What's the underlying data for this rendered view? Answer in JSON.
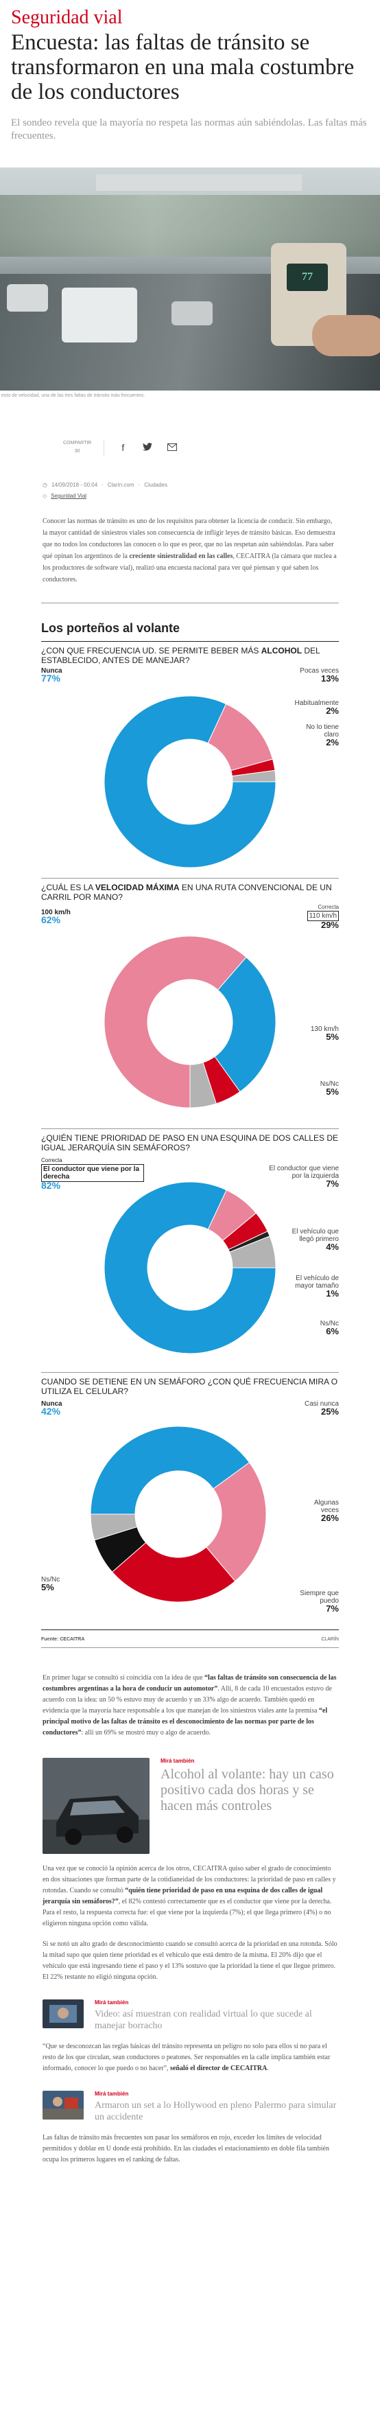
{
  "section": "Seguridad vial",
  "headline": "Encuesta: las faltas de tránsito se transformaron en una mala costumbre de los conductores",
  "dek": "El sondeo revela que la mayoría no respeta las normas aún sabiéndolas. Las faltas más frecuentes.",
  "hero": {
    "speed": "77",
    "caption": "esto de velocidad, una de las tres faltas de tránsito más frecuentes."
  },
  "share": {
    "count_label": "COMPARTIR",
    "count": "30"
  },
  "meta": {
    "date": "14/09/2018 - 00:04",
    "site": "Clarín.com",
    "section": "Ciudades",
    "tag": "Seguridad Vial"
  },
  "intro": {
    "t1": "Conocer las normas de tránsito es uno de los requisitos para obtener la licencia de conducir. Sin embargo, la mayor cantidad de siniestros viales son consecuencia de infligir leyes de tránsito básicas. Eso demuestra que no todos los conductores las conocen o lo que es peor, que no las respetan aún sabiéndolas. Para saber qué opinan los argentinos de la ",
    "b1": "creciente siniestralidad en las calles",
    "t2": ", CECAITRA (la cámara que nuclea a los productores de software vial), realizó una encuesta nacional para ver qué piensan y qué saben los conductores."
  },
  "infobox": {
    "title": "Los porteños al volante",
    "source": "Fuente: CECAITRA",
    "brand": "CLARÍN",
    "q1": {
      "a": "¿CON QUE FRECUENCIA UD. SE PERMITE BEBER MÁS ",
      "b": "ALCOHOL",
      "c": " DEL ESTABLECIDO, ANTES DE MANEJAR?"
    },
    "q2": {
      "a": "¿CUÁL ES LA ",
      "b": "VELOCIDAD MÁXIMA",
      "c": " EN UNA RUTA CONVENCIONAL DE UN CARRIL POR MANO?"
    },
    "q3": {
      "a": "¿QUIÉN TIENE PRIORIDAD DE PASO EN UNA ESQUINA DE DOS CALLES DE IGUAL JERARQUÍA SIN SEMÁFOROS?"
    },
    "q4": {
      "a": "CUANDO SE DETIENE EN UN SEMÁFORO ¿CON QUÉ FRECUENCIA MIRA O UTILIZA EL CELULAR?"
    },
    "labels": {
      "c1": [
        {
          "l": "Nunca",
          "p": "77%"
        },
        {
          "l": "Pocas veces",
          "p": "13%"
        },
        {
          "l": "Habitualmente",
          "p": "2%"
        },
        {
          "l": "No lo tiene claro",
          "p": "2%"
        }
      ],
      "c2": [
        {
          "l": "100 km/h",
          "p": "62%"
        },
        {
          "n": "Correcta",
          "l": "110 km/h",
          "p": "29%"
        },
        {
          "l": "130 km/h",
          "p": "5%"
        },
        {
          "l": "Ns/Nc",
          "p": "5%"
        }
      ],
      "c3": [
        {
          "n": "Correcta",
          "l": "El conductor que viene por la derecha",
          "p": "82%"
        },
        {
          "l": "El conductor que viene por la izquierda",
          "p": "7%"
        },
        {
          "l": "El vehículo que llegó primero",
          "p": "4%"
        },
        {
          "l": "El vehículo de mayor tamaño",
          "p": "1%"
        },
        {
          "l": "Ns/Nc",
          "p": "6%"
        }
      ],
      "c4": [
        {
          "l": "Nunca",
          "p": "42%"
        },
        {
          "l": "Casi nunca",
          "p": "25%"
        },
        {
          "l": "Algunas veces",
          "p": "26%"
        },
        {
          "l": "Siempre que puedo",
          "p": "7%"
        },
        {
          "l": "Ns/Nc",
          "p": "5%"
        }
      ]
    }
  },
  "chart_data": [
    {
      "type": "pie",
      "title": "¿Con que frecuencia Ud. se permite beber más alcohol del establecido, antes de manejar?",
      "categories": [
        "Nunca",
        "Pocas veces",
        "Habitualmente",
        "No lo tiene claro"
      ],
      "values": [
        77,
        13,
        2,
        2
      ],
      "colors": [
        "#1a9ad8",
        "#e9849a",
        "#d0021b",
        "#b3b3b3"
      ]
    },
    {
      "type": "pie",
      "title": "¿Cuál es la velocidad máxima en una ruta convencional de un carril por mano?",
      "categories": [
        "100 km/h",
        "110 km/h",
        "130 km/h",
        "Ns/Nc"
      ],
      "values": [
        62,
        29,
        5,
        5
      ],
      "colors": [
        "#e9849a",
        "#1a9ad8",
        "#d0021b",
        "#b3b3b3"
      ]
    },
    {
      "type": "pie",
      "title": "¿Quién tiene prioridad de paso en una esquina de dos calles de igual jerarquía sin semáforos?",
      "categories": [
        "El conductor que viene por la derecha",
        "El conductor que viene por la izquierda",
        "El vehículo que llegó primero",
        "El vehículo de mayor tamaño",
        "Ns/Nc"
      ],
      "values": [
        82,
        7,
        4,
        1,
        6
      ],
      "colors": [
        "#1a9ad8",
        "#e9849a",
        "#d0021b",
        "#222222",
        "#b3b3b3"
      ]
    },
    {
      "type": "pie",
      "title": "Cuando se detiene en un semáforo ¿con qué frecuencia mira o utiliza el celular?",
      "categories": [
        "Nunca",
        "Casi nunca",
        "Algunas veces",
        "Siempre que puedo",
        "Ns/Nc"
      ],
      "values": [
        42,
        25,
        26,
        7,
        5
      ],
      "colors": [
        "#1a9ad8",
        "#e9849a",
        "#d0021b",
        "#111111",
        "#b3b3b3"
      ]
    }
  ],
  "body": {
    "p1a": "En primer lugar se consultó si coincidía con la idea de que ",
    "p1b": "“las faltas de tránsito son consecuencia de las costumbres argentinas a la hora de conducir un automotor”",
    "p1c": ". Allí, 8 de cada 10 encuestados estuvo de acuerdo con la idea: un 50 % estuvo muy de acuerdo y un 33% algo de acuerdo. También quedó en evidencia que la mayoría hace responsable a los que manejan de los siniestros viales ante la premisa ",
    "p1d": "“el principal motivo de las faltas de tránsito es el desconocimiento de las normas por parte de los conductores”",
    "p1e": ": allí un 69% se mostró muy o algo de acuerdo.",
    "p2a": "Una vez que se conoció la opinión acerca de los otros, CECAITRA quiso saber el grado de conocimiento en dos situaciones que forman parte de la cotidianeidad de los conductores: la prioridad de paso en calles y rotondas. Cuando se consultó ",
    "p2b": "“quién tiene prioridad de paso en una esquina de dos calles de igual jerarquía sin semáforos?”",
    "p2c": ", el 82% contestó correctamente que es el conductor que viene por la derecha. Para el resto, la respuesta correcta fue: el que viene por la izquierda (7%); el que llega primero (4%) o no eligieron ninguna opción como válida.",
    "p3": "Si se notó un alto grado de desconocimiento cuando se consultó acerca de la prioridad en una rotonda. Sólo la mitad supo que quien tiene prioridad es el vehículo que está dentro de la misma. El 20% dijo que el vehículo que está ingresando tiene el paso y el 13% sostuvo que la prioridad la tiene el que llegue primero. El 22% restante no eligió ninguna opción.",
    "p4a": "“Que se desconozcan las reglas básicas del tránsito representa un peligro no solo para ellos si no para el resto de los que circulan, sean conductores o peatones. Ser responsables en la calle implica también estar informado, conocer lo que puedo o no hacer”, ",
    "p4b": "señaló el director de CECAITRA",
    "p4c": ".",
    "p5": "Las faltas de tránsito más frecuentes son pasar los semáforos en rojo, exceder los límites de velocidad permitidos y doblar en U donde está prohibido. En las ciudades el estacionamiento en doble fila también ocupa los primeros lugares en el ranking de faltas."
  },
  "related": [
    {
      "kicker": "Mirá también",
      "title": "Alcohol al volante: hay un caso positivo cada dos horas y se hacen más controles"
    },
    {
      "kicker": "Mirá también",
      "title": "Video: así muestran con realidad virtual lo que sucede al manejar borracho"
    },
    {
      "kicker": "Mirá también",
      "title": "Armaron un set a lo Hollywood en pleno Palermo para simular un accidente"
    }
  ]
}
